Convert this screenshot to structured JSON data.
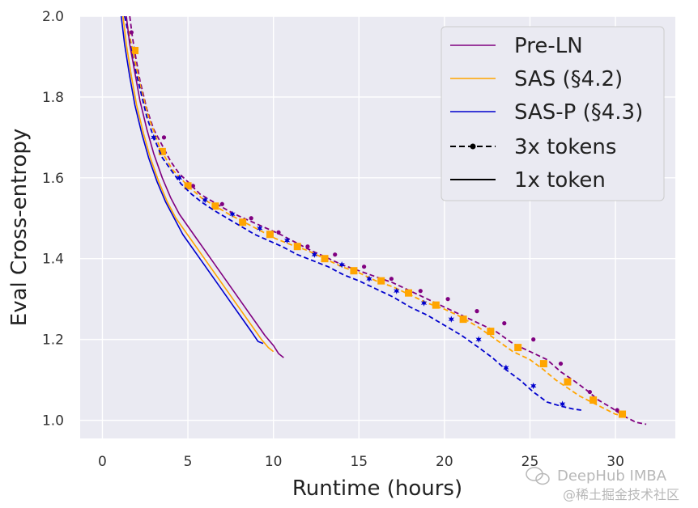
{
  "chart_data": {
    "type": "line",
    "xlabel": "Runtime (hours)",
    "ylabel": "Eval Cross-entropy",
    "xlim": [
      -1.3,
      33.5
    ],
    "ylim": [
      0.955,
      2.0
    ],
    "xticks": [
      0,
      5,
      10,
      15,
      20,
      25,
      30
    ],
    "yticks": [
      1.0,
      1.2,
      1.4,
      1.6,
      1.8,
      2.0
    ],
    "xtick_labels": [
      "0",
      "5",
      "10",
      "15",
      "20",
      "25",
      "30"
    ],
    "ytick_labels": [
      "1.0",
      "1.2",
      "1.4",
      "1.6",
      "1.8",
      "2.0"
    ],
    "grid": true,
    "legend_position": "top-right",
    "legend": [
      {
        "label": "Pre-LN",
        "color": "#800080",
        "style": "solid"
      },
      {
        "label": "SAS (§4.2)",
        "color": "#FFA500",
        "style": "solid"
      },
      {
        "label": "SAS-P (§4.3)",
        "color": "#0000CD",
        "style": "solid"
      },
      {
        "label": "3x tokens",
        "color": "#000000",
        "style": "dashed-marker"
      },
      {
        "label": "1x token",
        "color": "#000000",
        "style": "solid"
      }
    ],
    "series": [
      {
        "model": "Pre-LN",
        "tokens": "3x tokens",
        "color": "#800080",
        "dashed": true,
        "marker": "circle",
        "x": [
          1.6,
          1.75,
          1.9,
          2.2,
          2.6,
          3.0,
          3.5,
          4.0,
          4.5,
          5.0,
          5.7,
          6.5,
          7.3,
          8.0,
          8.8,
          9.6,
          10.4,
          11.3,
          12.2,
          13.0,
          14.0,
          15.0,
          16.0,
          17.0,
          18.0,
          19.0,
          20.0,
          21.0,
          22.0,
          23.0,
          24.0,
          25.0,
          26.0,
          26.8,
          27.5,
          28.3,
          29.0,
          29.8,
          30.5,
          31.2,
          31.8
        ],
        "y": [
          2.0,
          1.95,
          1.91,
          1.84,
          1.77,
          1.72,
          1.68,
          1.64,
          1.61,
          1.59,
          1.56,
          1.54,
          1.52,
          1.505,
          1.49,
          1.475,
          1.46,
          1.44,
          1.42,
          1.405,
          1.385,
          1.37,
          1.355,
          1.34,
          1.32,
          1.3,
          1.28,
          1.26,
          1.24,
          1.22,
          1.19,
          1.17,
          1.15,
          1.12,
          1.1,
          1.075,
          1.05,
          1.03,
          1.01,
          0.995,
          0.99
        ],
        "marker_x": [
          1.7,
          3.6,
          5.3,
          7.0,
          8.7,
          10.3,
          12.0,
          13.6,
          15.3,
          16.9,
          18.6,
          20.2,
          21.9,
          23.5,
          25.2,
          26.8,
          28.5,
          30.1
        ],
        "marker_y": [
          1.96,
          1.7,
          1.58,
          1.535,
          1.5,
          1.465,
          1.43,
          1.41,
          1.38,
          1.35,
          1.32,
          1.3,
          1.27,
          1.24,
          1.2,
          1.14,
          1.07,
          1.025
        ]
      },
      {
        "model": "SAS (§4.2)",
        "tokens": "3x tokens",
        "color": "#FFA500",
        "dashed": true,
        "marker": "square",
        "x": [
          1.3,
          1.5,
          1.8,
          2.2,
          2.7,
          3.4,
          4.1,
          5.0,
          5.8,
          6.6,
          7.4,
          8.3,
          9.2,
          10.1,
          11.0,
          12.0,
          13.0,
          14.0,
          15.0,
          16.0,
          17.0,
          18.0,
          19.0,
          20.0,
          21.0,
          22.0,
          23.0,
          24.0,
          25.0,
          25.8,
          26.5,
          27.2,
          27.9,
          28.6,
          29.3,
          30.0,
          30.6
        ],
        "y": [
          2.0,
          1.97,
          1.91,
          1.83,
          1.75,
          1.67,
          1.62,
          1.58,
          1.55,
          1.53,
          1.51,
          1.49,
          1.47,
          1.45,
          1.435,
          1.42,
          1.4,
          1.38,
          1.365,
          1.345,
          1.33,
          1.31,
          1.29,
          1.275,
          1.255,
          1.23,
          1.2,
          1.17,
          1.15,
          1.125,
          1.1,
          1.08,
          1.06,
          1.045,
          1.03,
          1.015,
          1.01
        ],
        "marker_x": [
          1.9,
          3.5,
          5.0,
          6.6,
          8.2,
          9.8,
          11.4,
          13.0,
          14.7,
          16.3,
          17.9,
          19.5,
          21.1,
          22.7,
          24.3,
          25.8,
          27.2,
          28.7,
          30.4
        ],
        "marker_y": [
          1.915,
          1.665,
          1.58,
          1.53,
          1.49,
          1.46,
          1.43,
          1.4,
          1.37,
          1.345,
          1.315,
          1.285,
          1.25,
          1.22,
          1.18,
          1.14,
          1.095,
          1.05,
          1.015
        ]
      },
      {
        "model": "SAS-P (§4.3)",
        "tokens": "3x tokens",
        "color": "#0000CD",
        "dashed": true,
        "marker": "star",
        "x": [
          1.3,
          1.5,
          1.8,
          2.2,
          2.6,
          3.0,
          3.5,
          4.0,
          4.6,
          5.2,
          5.8,
          6.5,
          7.3,
          8.1,
          8.9,
          9.7,
          10.5,
          11.4,
          12.3,
          13.2,
          14.1,
          15.0,
          16.0,
          17.0,
          18.0,
          19.0,
          20.0,
          21.0,
          22.0,
          22.8,
          23.6,
          24.4,
          25.2,
          26.0,
          26.8,
          27.5,
          28.0
        ],
        "y": [
          2.0,
          1.96,
          1.89,
          1.82,
          1.75,
          1.7,
          1.65,
          1.62,
          1.585,
          1.56,
          1.54,
          1.52,
          1.5,
          1.48,
          1.46,
          1.445,
          1.43,
          1.41,
          1.395,
          1.38,
          1.36,
          1.345,
          1.325,
          1.305,
          1.28,
          1.26,
          1.235,
          1.21,
          1.18,
          1.155,
          1.125,
          1.1,
          1.07,
          1.045,
          1.035,
          1.028,
          1.025
        ],
        "marker_x": [
          3.0,
          4.5,
          6.0,
          7.6,
          9.2,
          10.8,
          12.4,
          14.0,
          15.6,
          17.2,
          18.8,
          20.4,
          22.0,
          23.6,
          25.2,
          26.9
        ],
        "marker_y": [
          1.7,
          1.6,
          1.545,
          1.51,
          1.475,
          1.445,
          1.41,
          1.385,
          1.35,
          1.32,
          1.29,
          1.25,
          1.2,
          1.13,
          1.085,
          1.04
        ]
      },
      {
        "model": "Pre-LN",
        "tokens": "1x token",
        "color": "#800080",
        "dashed": false,
        "marker": "none",
        "x": [
          1.4,
          1.6,
          1.9,
          2.2,
          2.6,
          3.0,
          3.5,
          4.0,
          4.5,
          5.0,
          5.5,
          6.0,
          6.5,
          7.0,
          7.5,
          8.0,
          8.5,
          9.0,
          9.5,
          10.0,
          10.3,
          10.6
        ],
        "y": [
          2.0,
          1.93,
          1.86,
          1.79,
          1.72,
          1.66,
          1.6,
          1.55,
          1.51,
          1.48,
          1.45,
          1.42,
          1.39,
          1.36,
          1.33,
          1.3,
          1.27,
          1.24,
          1.21,
          1.185,
          1.165,
          1.155
        ]
      },
      {
        "model": "SAS (§4.2)",
        "tokens": "1x token",
        "color": "#FFA500",
        "dashed": false,
        "marker": "none",
        "x": [
          1.2,
          1.4,
          1.7,
          2.0,
          2.4,
          2.8,
          3.3,
          3.8,
          4.3,
          4.8,
          5.3,
          5.8,
          6.3,
          6.8,
          7.3,
          7.8,
          8.3,
          8.8,
          9.3,
          9.7,
          10.0
        ],
        "y": [
          2.0,
          1.93,
          1.85,
          1.78,
          1.71,
          1.65,
          1.59,
          1.54,
          1.5,
          1.47,
          1.44,
          1.41,
          1.38,
          1.35,
          1.32,
          1.29,
          1.26,
          1.23,
          1.2,
          1.18,
          1.17
        ]
      },
      {
        "model": "SAS-P (§4.3)",
        "tokens": "1x token",
        "color": "#0000CD",
        "dashed": false,
        "marker": "none",
        "x": [
          1.1,
          1.3,
          1.6,
          1.9,
          2.3,
          2.7,
          3.2,
          3.7,
          4.2,
          4.7,
          5.2,
          5.7,
          6.2,
          6.7,
          7.2,
          7.7,
          8.2,
          8.7,
          9.1,
          9.4
        ],
        "y": [
          2.0,
          1.93,
          1.85,
          1.78,
          1.71,
          1.65,
          1.59,
          1.54,
          1.5,
          1.46,
          1.43,
          1.4,
          1.37,
          1.34,
          1.31,
          1.28,
          1.25,
          1.22,
          1.195,
          1.19
        ]
      }
    ]
  },
  "watermark": {
    "line1": "DeepHub IMBA",
    "line2": "@稀土掘金技术社区"
  }
}
